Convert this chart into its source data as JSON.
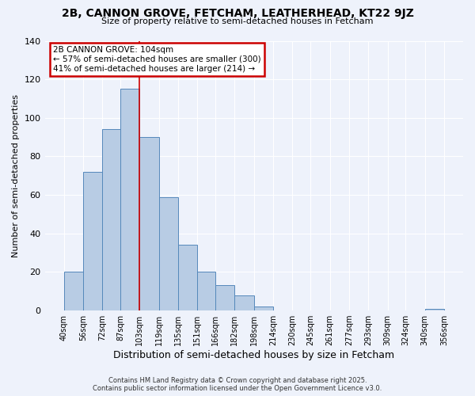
{
  "title": "2B, CANNON GROVE, FETCHAM, LEATHERHEAD, KT22 9JZ",
  "subtitle": "Size of property relative to semi-detached houses in Fetcham",
  "xlabel": "Distribution of semi-detached houses by size in Fetcham",
  "ylabel": "Number of semi-detached properties",
  "bar_values": [
    20,
    72,
    94,
    115,
    90,
    59,
    34,
    20,
    13,
    8,
    2,
    0,
    0,
    0,
    0,
    0,
    0,
    0,
    0,
    1
  ],
  "bin_labels": [
    "40sqm",
    "56sqm",
    "72sqm",
    "87sqm",
    "103sqm",
    "119sqm",
    "135sqm",
    "151sqm",
    "166sqm",
    "182sqm",
    "198sqm",
    "214sqm",
    "230sqm",
    "245sqm",
    "261sqm",
    "277sqm",
    "293sqm",
    "309sqm",
    "324sqm",
    "340sqm",
    "356sqm"
  ],
  "bin_edges": [
    40,
    56,
    72,
    87,
    103,
    119,
    135,
    151,
    166,
    182,
    198,
    214,
    230,
    245,
    261,
    277,
    293,
    309,
    324,
    340,
    356
  ],
  "bar_color": "#b8cce4",
  "bar_edge_color": "#5588bb",
  "property_line_x": 103,
  "property_line_color": "#cc0000",
  "ylim": [
    0,
    140
  ],
  "yticks": [
    0,
    20,
    40,
    60,
    80,
    100,
    120,
    140
  ],
  "annotation_title": "2B CANNON GROVE: 104sqm",
  "annotation_line1": "← 57% of semi-detached houses are smaller (300)",
  "annotation_line2": "41% of semi-detached houses are larger (214) →",
  "annotation_box_color": "#cc0000",
  "footer_line1": "Contains HM Land Registry data © Crown copyright and database right 2025.",
  "footer_line2": "Contains public sector information licensed under the Open Government Licence v3.0.",
  "background_color": "#eef2fb",
  "plot_background_color": "#eef2fb",
  "grid_color": "#ffffff"
}
